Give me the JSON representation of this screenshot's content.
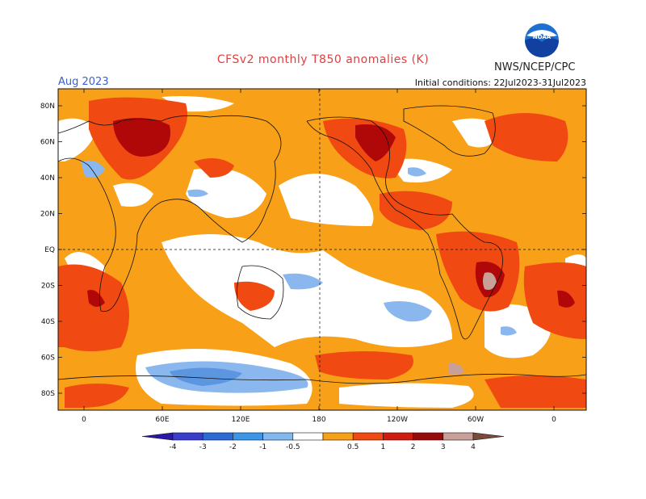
{
  "title": "CFSv2 monthly T850 anomalies (K)",
  "agency": "NWS/NCEP/CPC",
  "logo_text": "NOAA",
  "valid_month": "Aug 2023",
  "initial_conditions": "Initial conditions: 22Jul2023-31Jul2023",
  "lat_ticks": [
    "80N",
    "60N",
    "40N",
    "20N",
    "EQ",
    "20S",
    "40S",
    "60S",
    "80S"
  ],
  "lon_ticks": [
    "0",
    "60E",
    "120E",
    "180",
    "120W",
    "60W",
    "0"
  ],
  "colorbar": {
    "labels": [
      "-4",
      "-3",
      "-2",
      "-1",
      "-0.5",
      "0.5",
      "1",
      "2",
      "3",
      "4"
    ],
    "colors": [
      "#2a18a8",
      "#3a3ccc",
      "#2c6ad6",
      "#3c96e8",
      "#82b8f0",
      "#ffffff",
      "#f8a018",
      "#f04a12",
      "#d01c10",
      "#980a0a",
      "#c8a098",
      "#7a4a3a"
    ]
  },
  "map_colors": {
    "warm_light": "#f8a018",
    "warm": "#f04a12",
    "warm_strong": "#b00808",
    "warm_extreme": "#c8a098",
    "cool_light": "#8ab8ee",
    "cool": "#5c96e0",
    "neutral": "#ffffff"
  }
}
